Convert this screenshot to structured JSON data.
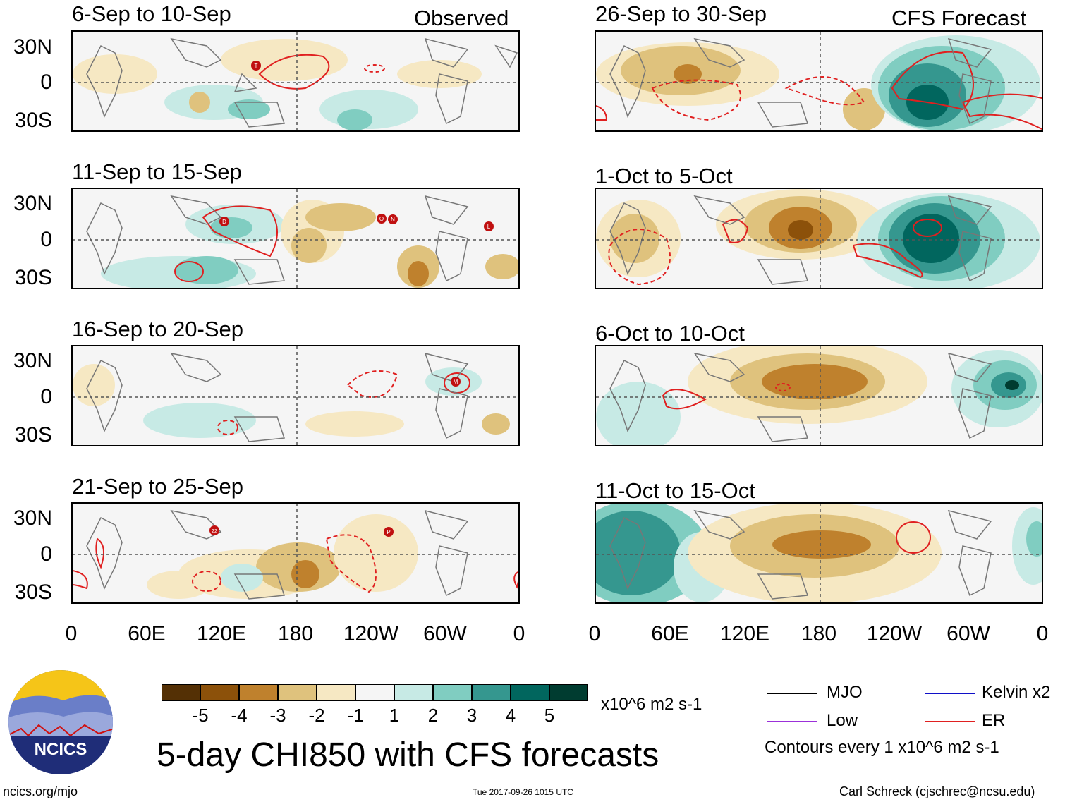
{
  "header": {
    "observed_label": "Observed",
    "forecast_label": "CFS Forecast"
  },
  "panels": [
    {
      "title": "6-Sep to 10-Sep"
    },
    {
      "title": "11-Sep to 15-Sep"
    },
    {
      "title": "16-Sep to 20-Sep"
    },
    {
      "title": "21-Sep to 25-Sep"
    },
    {
      "title": "26-Sep to 30-Sep"
    },
    {
      "title": "1-Oct to 5-Oct"
    },
    {
      "title": "6-Oct to 10-Oct"
    },
    {
      "title": "11-Oct to 15-Oct"
    }
  ],
  "lat_labels": [
    "30N",
    "0",
    "30S"
  ],
  "lon_labels": [
    "0",
    "60E",
    "120E",
    "180",
    "120W",
    "60W",
    "0"
  ],
  "storm_markers": {
    "p1": [
      "T"
    ],
    "p2": [
      "D",
      "O",
      "N",
      "L"
    ],
    "p3": [
      "M"
    ],
    "p4": [
      "22",
      "P"
    ]
  },
  "colorbar": {
    "labels": [
      "-5",
      "-4",
      "-3",
      "-2",
      "-1",
      "1",
      "2",
      "3",
      "4",
      "5"
    ],
    "colors": [
      "#543005",
      "#8c510a",
      "#bf812d",
      "#dfc27d",
      "#f6e8c3",
      "#f5f5f5",
      "#c7eae5",
      "#80cdc1",
      "#35978f",
      "#01665e",
      "#003c30"
    ],
    "units": "x10^6 m2 s-1"
  },
  "legend": {
    "mjo": "MJO",
    "low": "Low",
    "kelvin": "Kelvin x2",
    "er": "ER",
    "contours_note": "Contours every 1 x10^6 m2 s-1",
    "colors": {
      "mjo": "#000000",
      "low": "#9b30d9",
      "kelvin": "#1010c8",
      "er": "#e02020"
    }
  },
  "main_title": "5-day CHI850 with CFS forecasts",
  "logo_text": "NCICS",
  "footer": {
    "left": "ncics.org/mjo",
    "center": "Tue 2017-09-26 1015 UTC",
    "right": "Carl Schreck (cjschrec@ncsu.edu)"
  }
}
